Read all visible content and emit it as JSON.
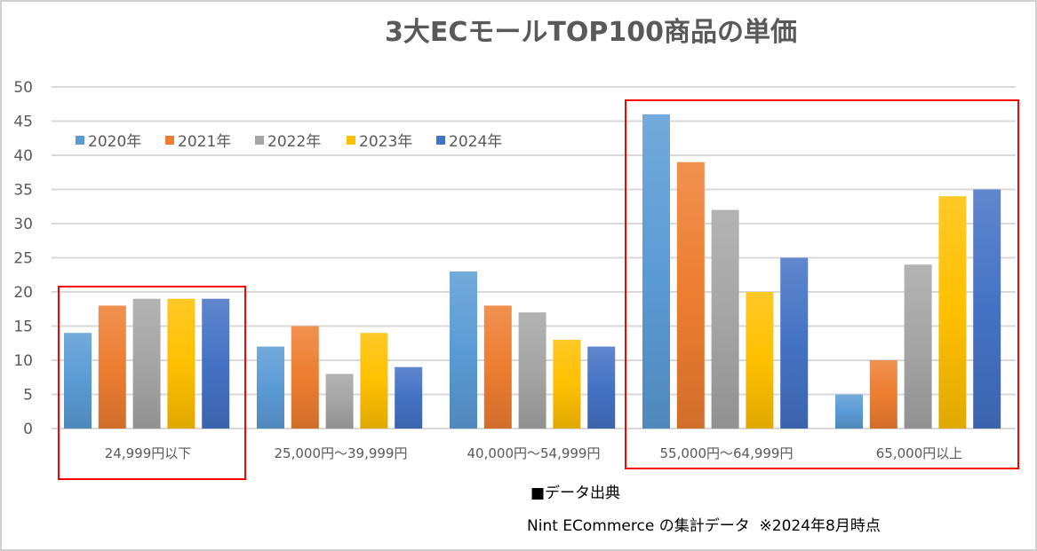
{
  "chart_data": {
    "type": "bar",
    "title": "3大ECモールTOP100商品の単価",
    "categories": [
      "24,999円以下",
      "25,000円～39,999円",
      "40,000円～54,999円",
      "55,000円～64,999円",
      "65,000円以上"
    ],
    "series": [
      {
        "name": "2020年",
        "color": "#5B9BD5",
        "values": [
          14,
          12,
          23,
          46,
          5
        ]
      },
      {
        "name": "2021年",
        "color": "#ED7D31",
        "values": [
          18,
          15,
          18,
          39,
          10
        ]
      },
      {
        "name": "2022年",
        "color": "#A5A5A5",
        "values": [
          19,
          8,
          17,
          32,
          24
        ]
      },
      {
        "name": "2023年",
        "color": "#FFC000",
        "values": [
          19,
          14,
          13,
          20,
          34
        ]
      },
      {
        "name": "2024年",
        "color": "#4472C4",
        "values": [
          19,
          9,
          12,
          25,
          35
        ]
      }
    ],
    "yticks": [
      "0",
      "5",
      "10",
      "15",
      "20",
      "25",
      "30",
      "35",
      "40",
      "45",
      "50"
    ],
    "ylim": [
      0,
      50
    ],
    "grid": true,
    "legend": "top-left",
    "highlight_color": "#FF0000",
    "highlighted_categories": [
      "24,999円以下",
      "55,000円～64,999円",
      "65,000円以上"
    ]
  },
  "notes": {
    "source_heading": "■データ出典",
    "source": "Nint ECommerce の集計データ  ※2024年8月時点"
  }
}
